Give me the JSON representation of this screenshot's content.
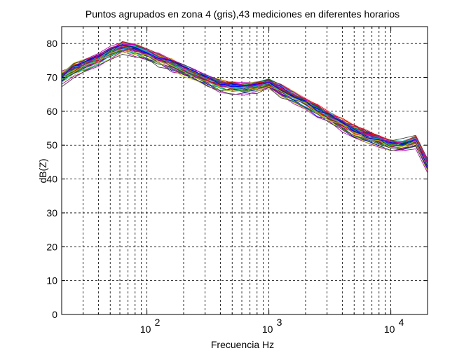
{
  "chart_data": {
    "type": "line",
    "title": "Puntos agrupados en zona 4 (gris),43 mediciones en diferentes horarios",
    "xlabel": "Frecuencia Hz",
    "ylabel": "dB(Z)",
    "xscale": "log",
    "xlim": [
      20,
      20000
    ],
    "ylim": [
      0,
      85
    ],
    "grid": true,
    "series_count": 43,
    "x_ticks": [
      {
        "value": 100,
        "base": "10",
        "exp": "2"
      },
      {
        "value": 1000,
        "base": "10",
        "exp": "3"
      },
      {
        "value": 10000,
        "base": "10",
        "exp": "4"
      }
    ],
    "y_ticks": [
      0,
      10,
      20,
      30,
      40,
      50,
      60,
      70,
      80
    ],
    "x": [
      20,
      25,
      31.5,
      40,
      50,
      63,
      80,
      100,
      125,
      160,
      200,
      250,
      315,
      400,
      500,
      630,
      800,
      1000,
      1250,
      1600,
      2000,
      2500,
      3150,
      4000,
      5000,
      6300,
      8000,
      10000,
      12500,
      16000,
      20000
    ],
    "envelope_mean": [
      69.5,
      72,
      73.5,
      75,
      77,
      78.5,
      78,
      76.5,
      75,
      73.5,
      72,
      70.5,
      69,
      67.5,
      67,
      66.5,
      67,
      68,
      66,
      64,
      62,
      60,
      58,
      56,
      54,
      52.5,
      51,
      50,
      50,
      51,
      44
    ],
    "series_colors": [
      "#0000ff",
      "#008000",
      "#ff0000",
      "#00bfbf",
      "#bf00bf",
      "#bfbf00",
      "#404040"
    ]
  }
}
